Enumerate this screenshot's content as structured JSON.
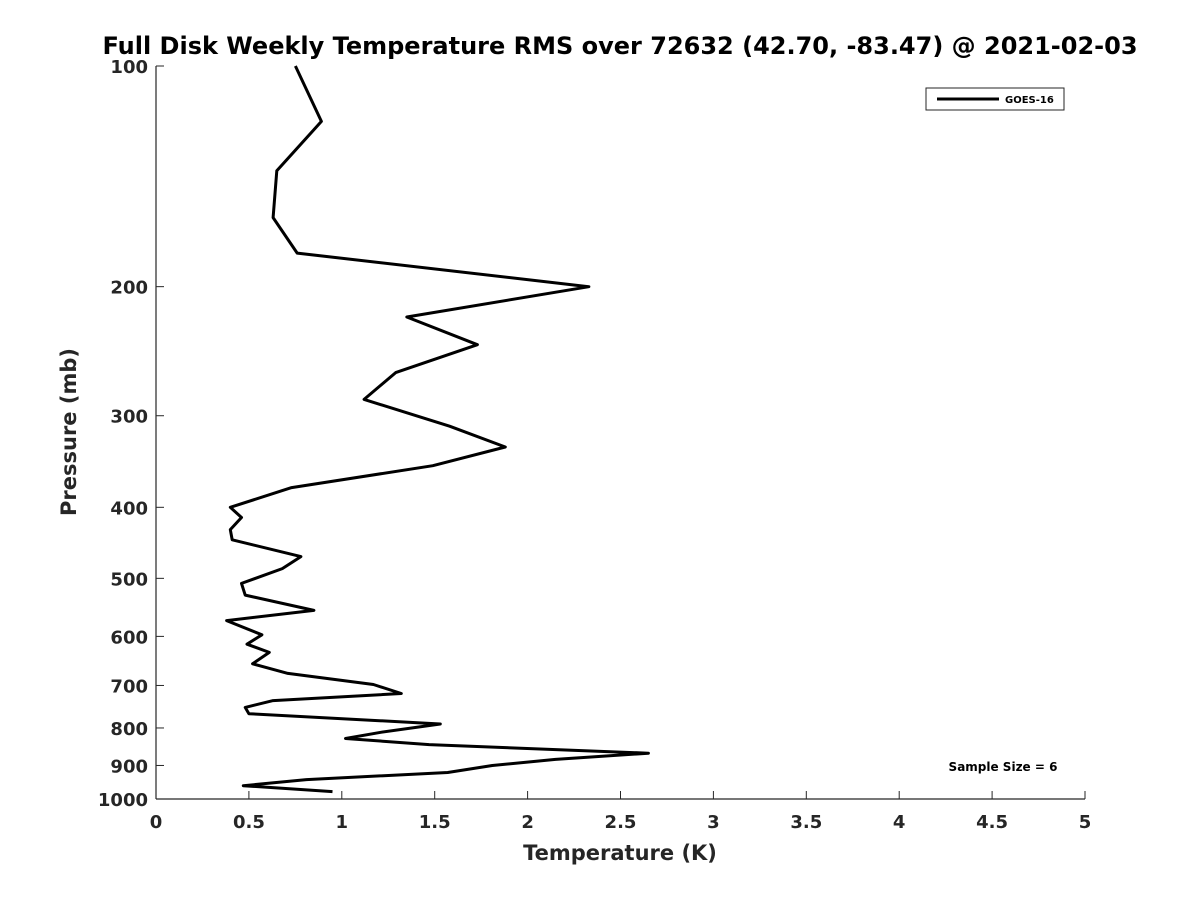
{
  "chart_data": {
    "type": "line",
    "title": "Full Disk Weekly Temperature RMS over 72632 (42.70, -83.47) @ 2021-02-03",
    "xlabel": "Temperature (K)",
    "ylabel": "Pressure (mb)",
    "xlim": [
      0,
      5
    ],
    "ylim": [
      100,
      1000
    ],
    "y_scale": "log",
    "y_reversed": true,
    "xticks": [
      0,
      0.5,
      1,
      1.5,
      2,
      2.5,
      3,
      3.5,
      4,
      4.5,
      5
    ],
    "xtick_labels": [
      "0",
      "0.5",
      "1",
      "1.5",
      "2",
      "2.5",
      "3",
      "3.5",
      "4",
      "4.5",
      "5"
    ],
    "yticks": [
      100,
      200,
      300,
      400,
      500,
      600,
      700,
      800,
      900,
      1000
    ],
    "ytick_labels": [
      "100",
      "200",
      "300",
      "400",
      "500",
      "600",
      "700",
      "800",
      "900",
      "1000"
    ],
    "grid": false,
    "legend_position": "top-right",
    "series": [
      {
        "name": "GOES-16",
        "color": "#000000",
        "points": [
          [
            0.75,
            100
          ],
          [
            0.89,
            119
          ],
          [
            0.65,
            139
          ],
          [
            0.63,
            161
          ],
          [
            0.76,
            180
          ],
          [
            2.33,
            200
          ],
          [
            1.35,
            220
          ],
          [
            1.73,
            240
          ],
          [
            1.29,
            262
          ],
          [
            1.12,
            285
          ],
          [
            1.58,
            310
          ],
          [
            1.88,
            331
          ],
          [
            1.49,
            351
          ],
          [
            0.73,
            376
          ],
          [
            0.4,
            400
          ],
          [
            0.46,
            413
          ],
          [
            0.4,
            429
          ],
          [
            0.41,
            443
          ],
          [
            0.78,
            467
          ],
          [
            0.68,
            485
          ],
          [
            0.46,
            508
          ],
          [
            0.48,
            527
          ],
          [
            0.85,
            553
          ],
          [
            0.38,
            571
          ],
          [
            0.57,
            597
          ],
          [
            0.49,
            615
          ],
          [
            0.61,
            631
          ],
          [
            0.52,
            654
          ],
          [
            0.71,
            674
          ],
          [
            1.17,
            698
          ],
          [
            1.32,
            718
          ],
          [
            0.63,
            734
          ],
          [
            0.48,
            750
          ],
          [
            0.5,
            765
          ],
          [
            1.53,
            790
          ],
          [
            1.21,
            811
          ],
          [
            1.02,
            827
          ],
          [
            1.47,
            843
          ],
          [
            2.65,
            866
          ],
          [
            2.15,
            883
          ],
          [
            1.81,
            900
          ],
          [
            1.57,
            920
          ],
          [
            0.81,
            941
          ],
          [
            0.47,
            959
          ],
          [
            0.95,
            977
          ]
        ]
      }
    ],
    "annotation": "Sample Size = 6"
  }
}
